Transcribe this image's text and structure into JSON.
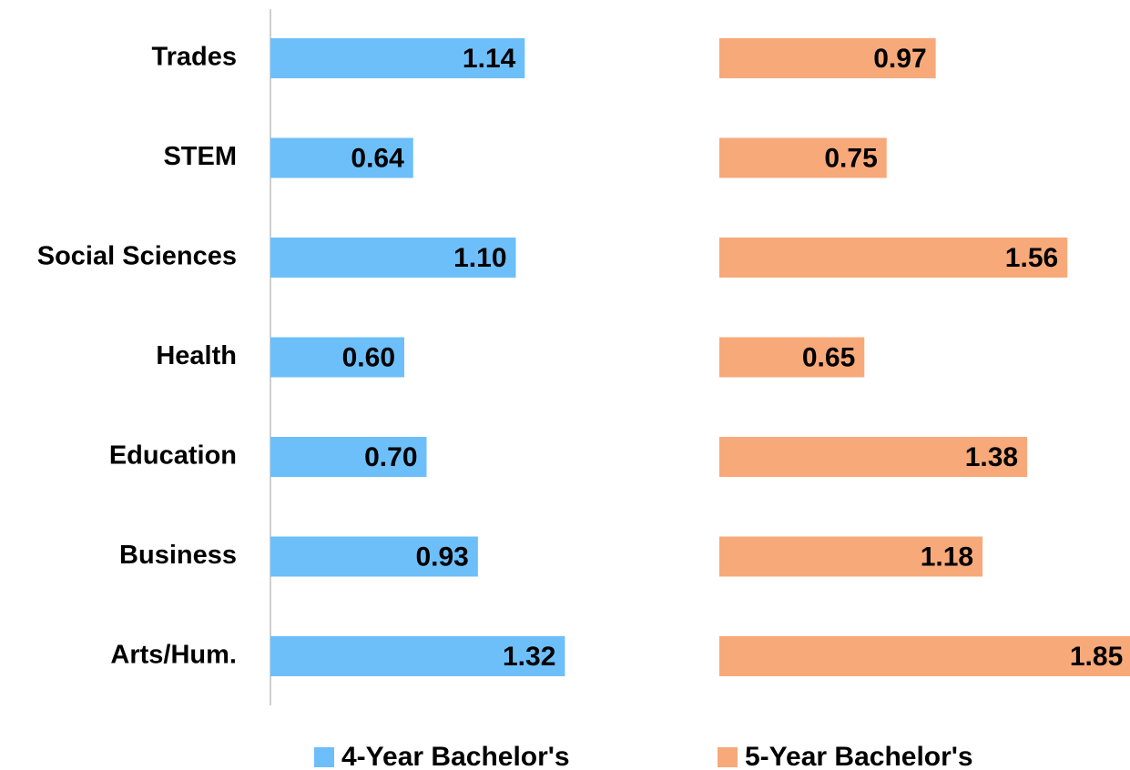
{
  "chart_data": {
    "type": "bar",
    "orientation": "horizontal",
    "categories": [
      "Trades",
      "STEM",
      "Social Sciences",
      "Health",
      "Education",
      "Business",
      "Arts/Hum."
    ],
    "series": [
      {
        "name": "4-Year Bachelor's",
        "color": "#6dbff9",
        "values": [
          1.14,
          0.64,
          1.1,
          0.6,
          0.7,
          0.93,
          1.32
        ],
        "value_labels": [
          "1.14",
          "0.64",
          "1.10",
          "0.60",
          "0.70",
          "0.93",
          "1.32"
        ]
      },
      {
        "name": "5-Year Bachelor's",
        "color": "#f7a97a",
        "values": [
          0.97,
          0.75,
          1.56,
          0.65,
          1.38,
          1.18,
          1.85
        ],
        "value_labels": [
          "0.97",
          "0.75",
          "1.56",
          "0.65",
          "1.38",
          "1.18",
          "1.85"
        ]
      }
    ],
    "legend": "bottom"
  }
}
